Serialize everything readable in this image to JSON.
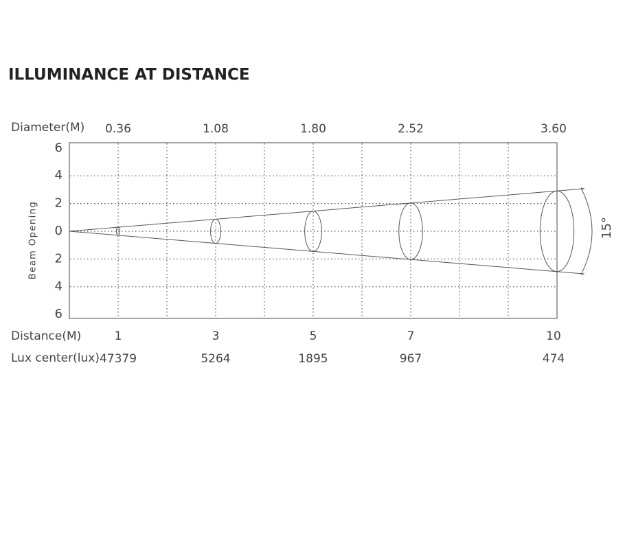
{
  "title": "ILLUMINANCE AT DISTANCE",
  "diameter_label": "Diameter(M)",
  "distance_label": "Distance(M)",
  "lux_label": "Lux center(lux)",
  "y_axis_label": "Beam Opening",
  "beam_angle": "15°",
  "y_ticks": [
    6,
    4,
    2,
    0,
    {
      "value": -2,
      "label": "2"
    },
    {
      "value": -4,
      "label": "4"
    },
    {
      "value": -6,
      "label": "6"
    }
  ],
  "columns": [
    {
      "diameter": "0.36",
      "distance": 1,
      "lux": 47379
    },
    {
      "diameter": "1.08",
      "distance": 3,
      "lux": 5264
    },
    {
      "diameter": "1.80",
      "distance": 5,
      "lux": 1895
    },
    {
      "diameter": "2.52",
      "distance": 7,
      "lux": 967
    },
    {
      "diameter": "3.60",
      "distance": 10,
      "lux": 474
    }
  ]
}
